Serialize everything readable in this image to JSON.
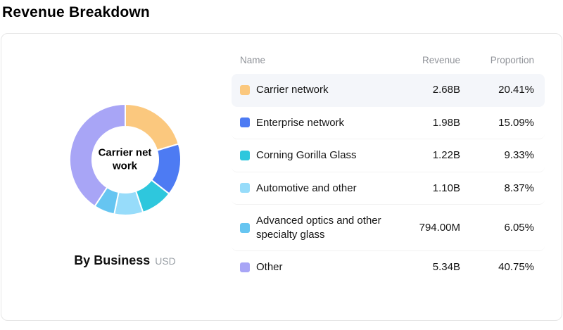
{
  "page_title": "Revenue Breakdown",
  "panel": {
    "center_label": "Carrier net work",
    "caption": "By Business",
    "caption_unit": "USD"
  },
  "table": {
    "columns": [
      "Name",
      "Revenue",
      "Proportion"
    ],
    "rows": [
      {
        "name": "Carrier network",
        "revenue": "2.68B",
        "proportion": "20.41%",
        "color": "#fbc87e",
        "highlighted": true
      },
      {
        "name": "Enterprise network",
        "revenue": "1.98B",
        "proportion": "15.09%",
        "color": "#4d7bf3",
        "highlighted": false
      },
      {
        "name": "Corning Gorilla Glass",
        "revenue": "1.22B",
        "proportion": "9.33%",
        "color": "#2ec7dd",
        "highlighted": false
      },
      {
        "name": "Automotive and other",
        "revenue": "1.10B",
        "proportion": "8.37%",
        "color": "#97dcfa",
        "highlighted": false
      },
      {
        "name": "Advanced optics and other specialty glass",
        "revenue": "794.00M",
        "proportion": "6.05%",
        "color": "#66c5f1",
        "highlighted": false
      },
      {
        "name": "Other",
        "revenue": "5.34B",
        "proportion": "40.75%",
        "color": "#a8a5f6",
        "highlighted": false
      }
    ]
  },
  "chart_data": {
    "type": "pie",
    "title": "By Business",
    "unit": "USD",
    "categories": [
      "Carrier network",
      "Enterprise network",
      "Corning Gorilla Glass",
      "Automotive and other",
      "Advanced optics and other specialty glass",
      "Other"
    ],
    "values": [
      20.41,
      15.09,
      9.33,
      8.37,
      6.05,
      40.75
    ],
    "revenues": [
      "2.68B",
      "1.98B",
      "1.22B",
      "1.10B",
      "794.00M",
      "5.34B"
    ],
    "colors": [
      "#fbc87e",
      "#4d7bf3",
      "#2ec7dd",
      "#97dcfa",
      "#66c5f1",
      "#a8a5f6"
    ],
    "donut": true,
    "inner_radius_ratio": 0.6,
    "start_angle_deg": 0,
    "direction": "clockwise",
    "center_label": "Carrier net work",
    "highlighted_segment": "Carrier network",
    "legend_position": "table-right"
  }
}
